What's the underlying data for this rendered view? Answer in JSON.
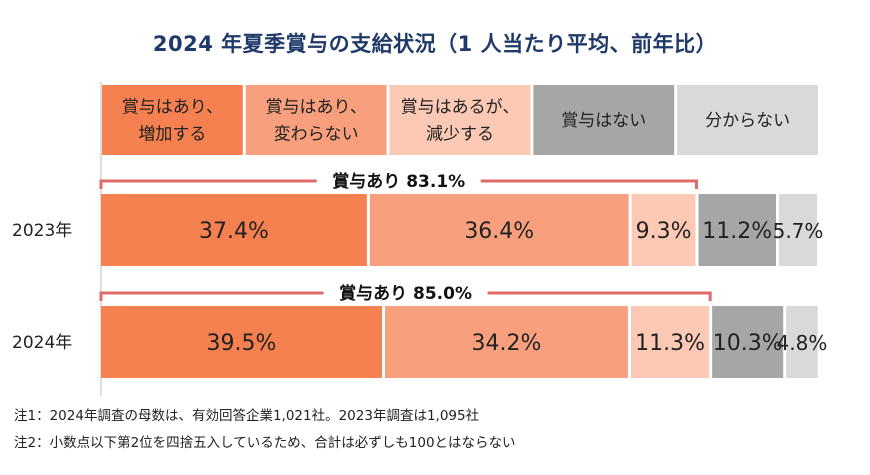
{
  "chart_data": {
    "type": "bar",
    "orientation": "horizontal",
    "stacked": "100%",
    "title": "2024 年夏季賞与の支給状況（1 人当たり平均、前年比）",
    "legend_placement": "top",
    "categories": [
      "2023年",
      "2024年"
    ],
    "series": [
      {
        "name": "賞与はあり、増加する",
        "color": "#f58050",
        "values": [
          37.4,
          39.5
        ]
      },
      {
        "name": "賞与はあり、変わらない",
        "color": "#f8a07e",
        "values": [
          36.4,
          34.2
        ]
      },
      {
        "name": "賞与はあるが、減少する",
        "color": "#fbc9b4",
        "values": [
          9.3,
          11.3
        ]
      },
      {
        "name": "賞与はない",
        "color": "#a6a6a6",
        "values": [
          11.2,
          10.3
        ]
      },
      {
        "name": "分からない",
        "color": "#d9d9d9",
        "values": [
          5.7,
          4.8
        ]
      }
    ],
    "value_labels": [
      [
        "37.4%",
        "36.4%",
        "9.3%",
        "11.2%",
        "5.7%"
      ],
      [
        "39.5%",
        "34.2%",
        "11.3%",
        "10.3%",
        "4.8%"
      ]
    ],
    "legend_lines": [
      [
        "賞与はあり、",
        "増加する"
      ],
      [
        "賞与はあり、",
        "変わらない"
      ],
      [
        "賞与はあるが、",
        "減少する"
      ],
      [
        "賞与はない"
      ],
      [
        "分からない"
      ]
    ],
    "brackets": [
      {
        "label": "賞与あり 83.1%",
        "value": 83.1
      },
      {
        "label": "賞与あり 85.0%",
        "value": 85.0
      }
    ],
    "bracket_color": "#e06a6a"
  },
  "notes": [
    "注1：2024年調査の母数は、有効回答企業1,021社。2023年調査は1,095社",
    "注2：小数点以下第2位を四捨五入しているため、合計は必ずしも100とはならない"
  ]
}
